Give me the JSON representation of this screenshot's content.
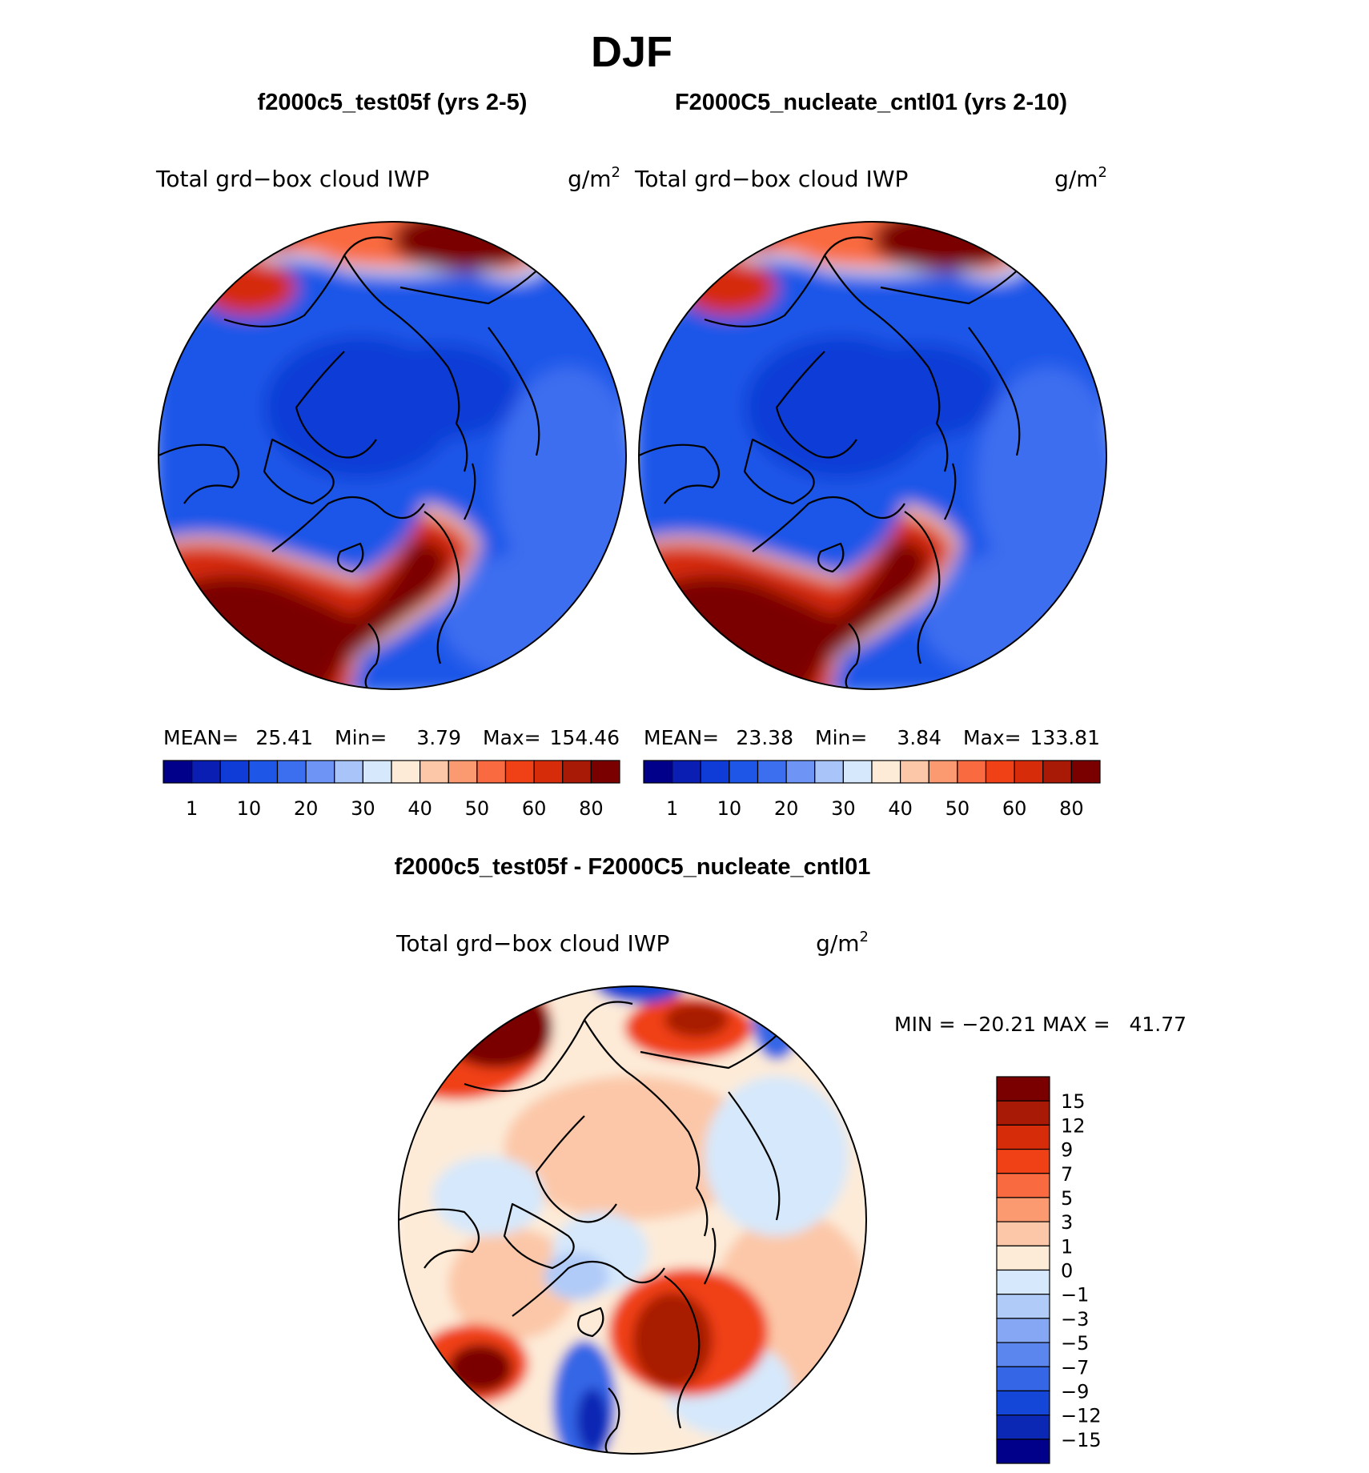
{
  "title": "DJF",
  "panels": [
    {
      "id": "test",
      "case_title": "f2000c5_test05f (yrs 2-5)",
      "variable": "Total grd−box cloud IWP",
      "units_base": "g/m",
      "units_exp": "2",
      "stats": {
        "mean_label": "MEAN=",
        "mean": "25.41",
        "min_label": "Min=",
        "min": "3.79",
        "max_label": "Max=",
        "max": "154.46"
      }
    },
    {
      "id": "control",
      "case_title": "F2000C5_nucleate_cntl01 (yrs 2-10)",
      "variable": "Total grd−box cloud IWP",
      "units_base": "g/m",
      "units_exp": "2",
      "stats": {
        "mean_label": "MEAN=",
        "mean": "23.38",
        "min_label": "Min=",
        "min": "3.84",
        "max_label": "Max=",
        "max": "133.81"
      }
    }
  ],
  "colorbar_abs": {
    "colors": [
      "#00008b",
      "#0a1eb4",
      "#0f3cd6",
      "#1e56e8",
      "#3c6ef0",
      "#6e94f5",
      "#a8c4f8",
      "#d6e8fb",
      "#fdebd8",
      "#fcc7a8",
      "#fb9a70",
      "#f96a40",
      "#f04016",
      "#d62c0a",
      "#a81a05",
      "#7a0000"
    ],
    "labels": [
      "1",
      "10",
      "20",
      "30",
      "40",
      "50",
      "60",
      "80"
    ]
  },
  "difference": {
    "title": "f2000c5_test05f - F2000C5_nucleate_cntl01",
    "variable": "Total grd−box cloud IWP",
    "units_base": "g/m",
    "units_exp": "2",
    "min_max_text": "MIN = −20.21 MAX =   41.77",
    "colorbar": {
      "colors": [
        "#7a0000",
        "#a81a05",
        "#d62c0a",
        "#f04016",
        "#f96a40",
        "#fb9a70",
        "#fcc7a8",
        "#fdebd8",
        "#d6e8fb",
        "#b0cbf8",
        "#86a8f4",
        "#5a86ee",
        "#3466e6",
        "#1446d8",
        "#0a28b4",
        "#00008b"
      ],
      "labels": [
        "15",
        "12",
        "9",
        "7",
        "5",
        "3",
        "1",
        "0",
        "−1",
        "−3",
        "−5",
        "−7",
        "−9",
        "−12",
        "−15"
      ]
    }
  }
}
